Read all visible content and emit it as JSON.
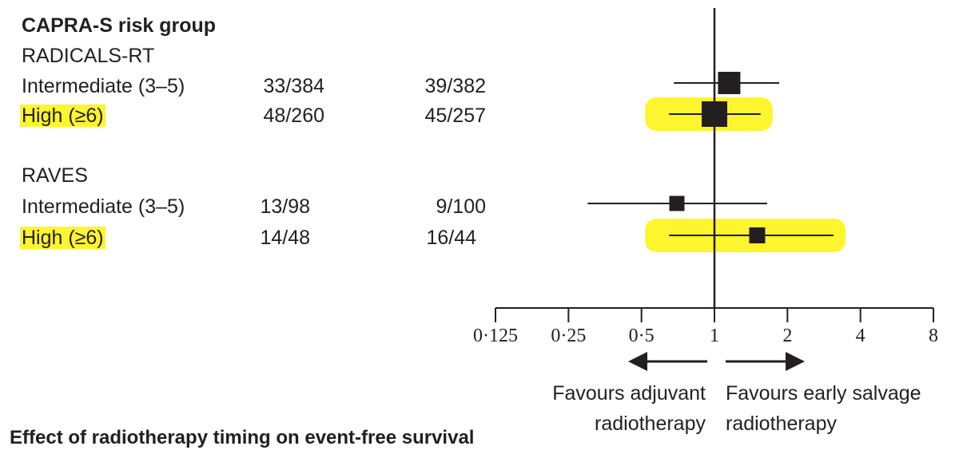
{
  "chart_data": {
    "type": "forest",
    "header": "CAPRA-S risk group",
    "title": "Effect of radiotherapy timing on event-free survival",
    "x_scale": "log2",
    "xlim": [
      0.125,
      8
    ],
    "x_ticks": [
      0.125,
      0.25,
      0.5,
      1,
      2,
      4,
      8
    ],
    "x_tick_labels": [
      "0·125",
      "0·25",
      "0·5",
      "1",
      "2",
      "4",
      "8"
    ],
    "reference_line": 1,
    "favours_left": "Favours adjuvant radiotherapy",
    "favours_right": "Favours early salvage radiotherapy",
    "groups": [
      {
        "name": "RADICALS-RT",
        "rows": [
          {
            "label": "Intermediate (3–5)",
            "col1": "33/384",
            "col2": "39/382",
            "estimate": 1.15,
            "lower": 0.68,
            "upper": 1.85,
            "highlighted": false
          },
          {
            "label": "High (≥6)",
            "col1": "48/260",
            "col2": "45/257",
            "estimate": 1.0,
            "lower": 0.65,
            "upper": 1.55,
            "highlighted": true
          }
        ]
      },
      {
        "name": "RAVES",
        "rows": [
          {
            "label": "Intermediate (3–5)",
            "col1": "13/98",
            "col2": "9/100",
            "estimate": 0.7,
            "lower": 0.3,
            "upper": 1.65,
            "highlighted": false
          },
          {
            "label": "High (≥6)",
            "col1": "14/48",
            "col2": "16/44",
            "estimate": 1.5,
            "lower": 0.65,
            "upper": 3.1,
            "highlighted": true
          }
        ]
      }
    ]
  },
  "labels": {
    "favours_left_line1": "Favours adjuvant",
    "favours_left_line2": "radiotherapy",
    "favours_right_line1": "Favours early salvage",
    "favours_right_line2": "radiotherapy"
  },
  "colors": {
    "highlight": "#fdf52d",
    "ink": "#231f20"
  }
}
